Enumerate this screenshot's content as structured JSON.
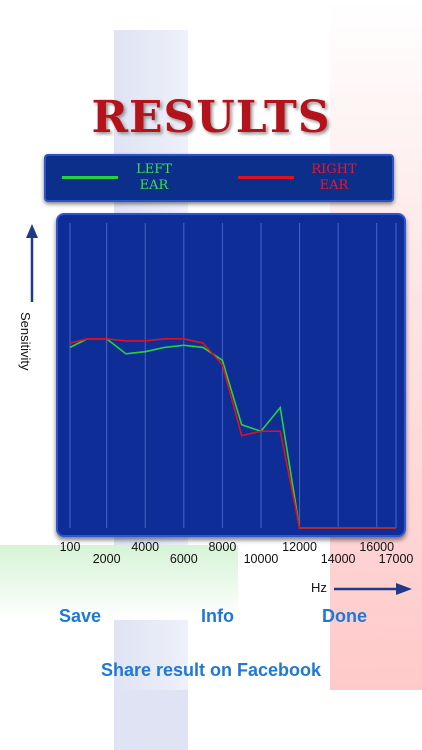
{
  "title": "RESULTS",
  "legend": {
    "left_label_line1": "LEFT",
    "left_label_line2": "EAR",
    "right_label_line1": "RIGHT",
    "right_label_line2": "EAR",
    "left_color": "#27d33c",
    "right_color": "#e0101f"
  },
  "axes": {
    "ylabel": "Sensitivity",
    "xunit": "Hz"
  },
  "x_ticks": {
    "upper": [
      "100",
      "4000",
      "8000",
      "12000",
      "16000"
    ],
    "lower": [
      "2000",
      "6000",
      "10000",
      "14000",
      "17000"
    ]
  },
  "buttons": {
    "save": "Save",
    "info": "Info",
    "done": "Done",
    "facebook": "Share result on Facebook"
  },
  "chart_data": {
    "type": "line",
    "x": [
      100,
      1000,
      2000,
      3000,
      4000,
      5000,
      6000,
      7000,
      8000,
      9000,
      10000,
      11000,
      12000,
      17000
    ],
    "series": [
      {
        "name": "LEFT EAR",
        "color": "#27d33c",
        "values": [
          84,
          88,
          88,
          81,
          82,
          84,
          85,
          84,
          78,
          48,
          45,
          56,
          0,
          0
        ]
      },
      {
        "name": "RIGHT EAR",
        "color": "#e0101f",
        "values": [
          86,
          88,
          88,
          87,
          87,
          88,
          88,
          86,
          76,
          43,
          45,
          45,
          0,
          0
        ]
      }
    ],
    "xlim": [
      100,
      17000
    ],
    "ylim": [
      0,
      100
    ],
    "grid": true
  }
}
